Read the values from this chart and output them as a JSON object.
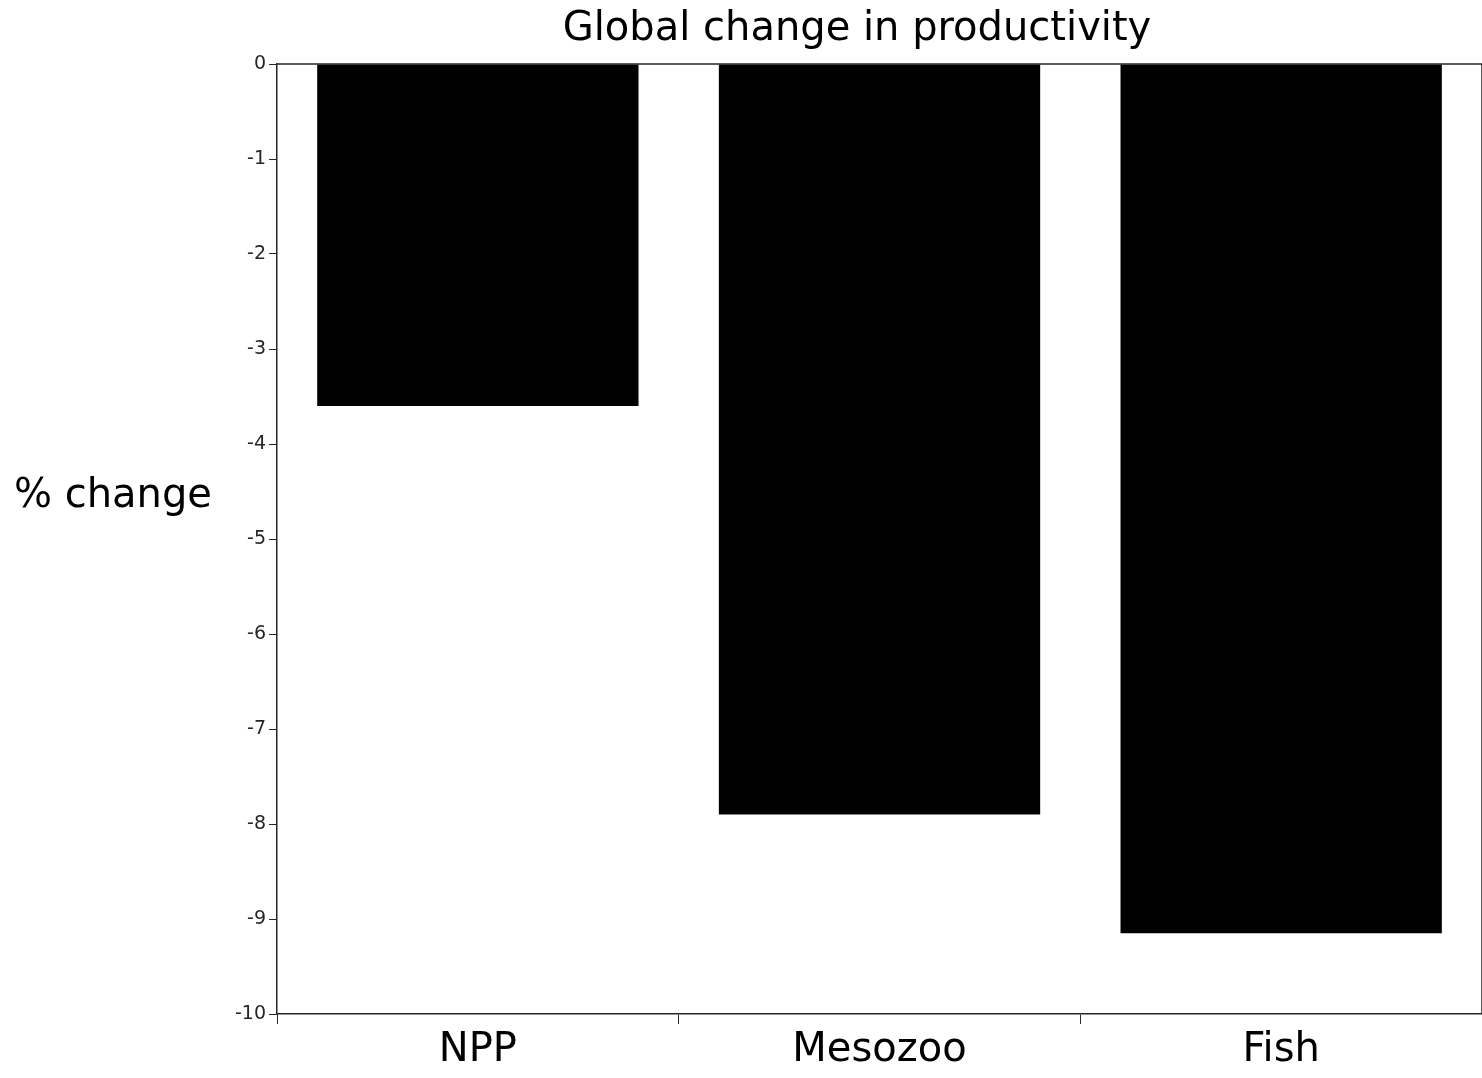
{
  "chart_data": {
    "type": "bar",
    "title": "Global change in productivity",
    "ylabel": "% change",
    "categories": [
      "NPP",
      "Mesozoo",
      "Fish"
    ],
    "values": [
      -3.6,
      -7.9,
      -9.15
    ],
    "color": "#000000",
    "ylim": [
      -10,
      0
    ],
    "yticks": [
      0,
      -1,
      -2,
      -3,
      -4,
      -5,
      -6,
      -7,
      -8,
      -9,
      -10
    ],
    "grid": false
  }
}
